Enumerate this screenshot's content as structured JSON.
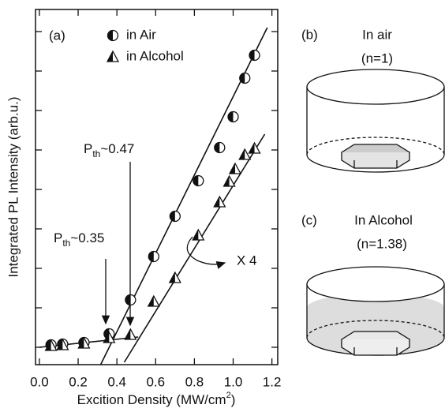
{
  "chart_data": {
    "type": "scatter",
    "xlabel": {
      "main": "Excition Density (MW/cm",
      "sup": "2",
      "rest": ")"
    },
    "ylabel": "Integrated PL Intensity (arb.u.)",
    "xlim": [
      -0.02,
      1.23
    ],
    "ylim": [
      0,
      9
    ],
    "xticks": [
      {
        "value": 0,
        "label": "0.0"
      },
      0.2,
      0.4,
      0.6,
      0.8,
      {
        "value": 1,
        "label": "1.0"
      },
      1.2
    ],
    "yticks": [
      0.44,
      1.44,
      2.44,
      3.44,
      4.44,
      5.44,
      6.44,
      7.44,
      8.44
    ],
    "series": [
      {
        "name": "in Air",
        "marker": "circle",
        "color": "#111111",
        "x": [
          0.06,
          0.12,
          0.23,
          0.36,
          0.47,
          0.59,
          0.7,
          0.82,
          0.93,
          1.0,
          1.06,
          1.11
        ],
        "values": [
          0.5,
          0.52,
          0.56,
          0.78,
          1.64,
          2.74,
          3.76,
          4.66,
          5.5,
          6.28,
          7.26,
          7.84
        ]
      },
      {
        "name": "in Alcohol",
        "marker": "triangle",
        "color": "#111111",
        "x": [
          0.06,
          0.12,
          0.23,
          0.36,
          0.47,
          0.59,
          0.7,
          0.82,
          0.93,
          0.98,
          1.01,
          1.06,
          1.11
        ],
        "values": [
          0.48,
          0.5,
          0.54,
          0.68,
          0.76,
          1.6,
          2.2,
          3.28,
          4.12,
          4.64,
          4.96,
          5.32,
          5.48
        ]
      }
    ],
    "fit_lines": [
      {
        "x": [
          0,
          0.51
        ],
        "values": [
          0.44,
          0.7
        ]
      },
      {
        "x": [
          0.316,
          1.176
        ],
        "values": [
          0,
          8.54
        ]
      },
      {
        "x": [
          0.438,
          1.163
        ],
        "values": [
          0.06,
          5.84
        ]
      }
    ],
    "panel_label": "(a)",
    "annotations": [
      {
        "main": "P",
        "sub": "th",
        "rest": "~0.47"
      },
      {
        "main": "P",
        "sub": "th",
        "rest": "~0.35"
      },
      {
        "text": "X 4"
      }
    ]
  },
  "diagrams": {
    "b": {
      "label": "(b)",
      "medium": "In air",
      "index": "(n=1)"
    },
    "c": {
      "label": "(c)",
      "medium": "In Alcohol",
      "index": "(n=1.38)"
    }
  }
}
